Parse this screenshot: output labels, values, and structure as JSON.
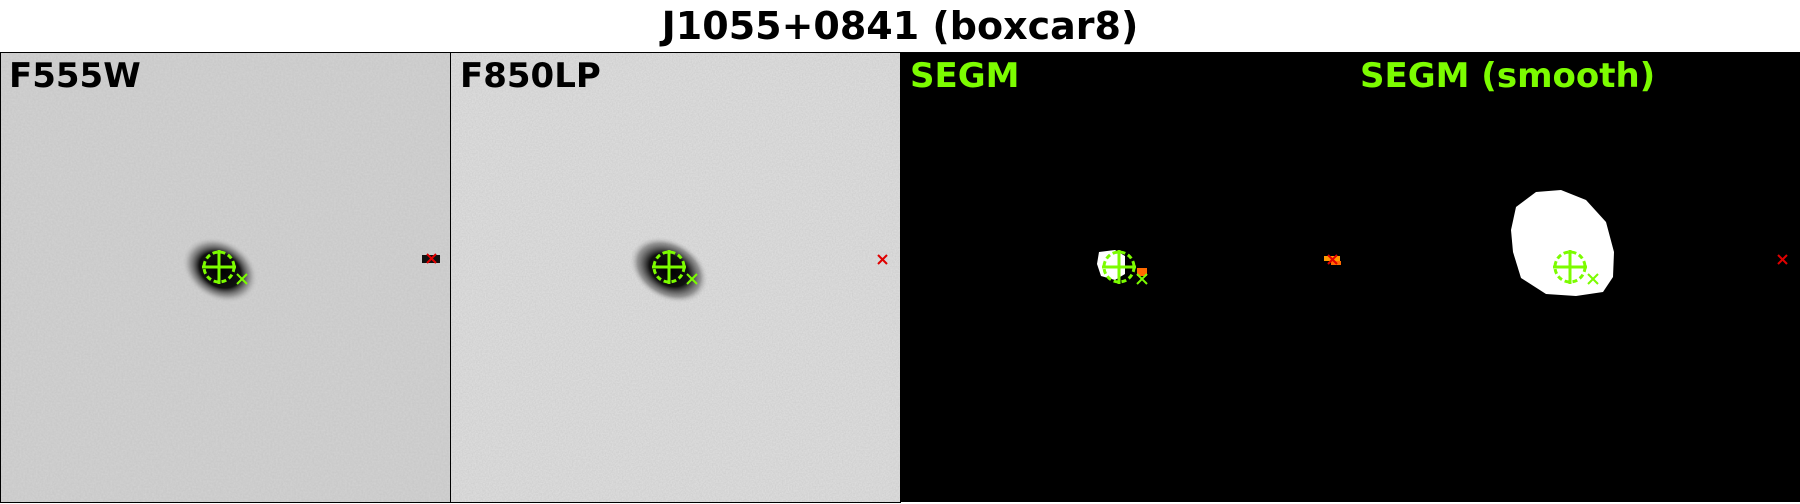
{
  "title": "J1055+0841 (boxcar8)",
  "panels": [
    {
      "label": "F555W",
      "label_color": "#000000",
      "background": "#c8c8c8"
    },
    {
      "label": "F850LP",
      "label_color": "#000000",
      "background": "#d2d2d2"
    },
    {
      "label": "SEGM",
      "label_color": "#7cfc00",
      "background": "#000000"
    },
    {
      "label": "SEGM (smooth)",
      "label_color": "#7cfc00",
      "background": "#000000"
    }
  ],
  "colors": {
    "marker_green": "#7cfc00",
    "marker_red": "#e00000",
    "segment_orange": "#ff8c00"
  }
}
